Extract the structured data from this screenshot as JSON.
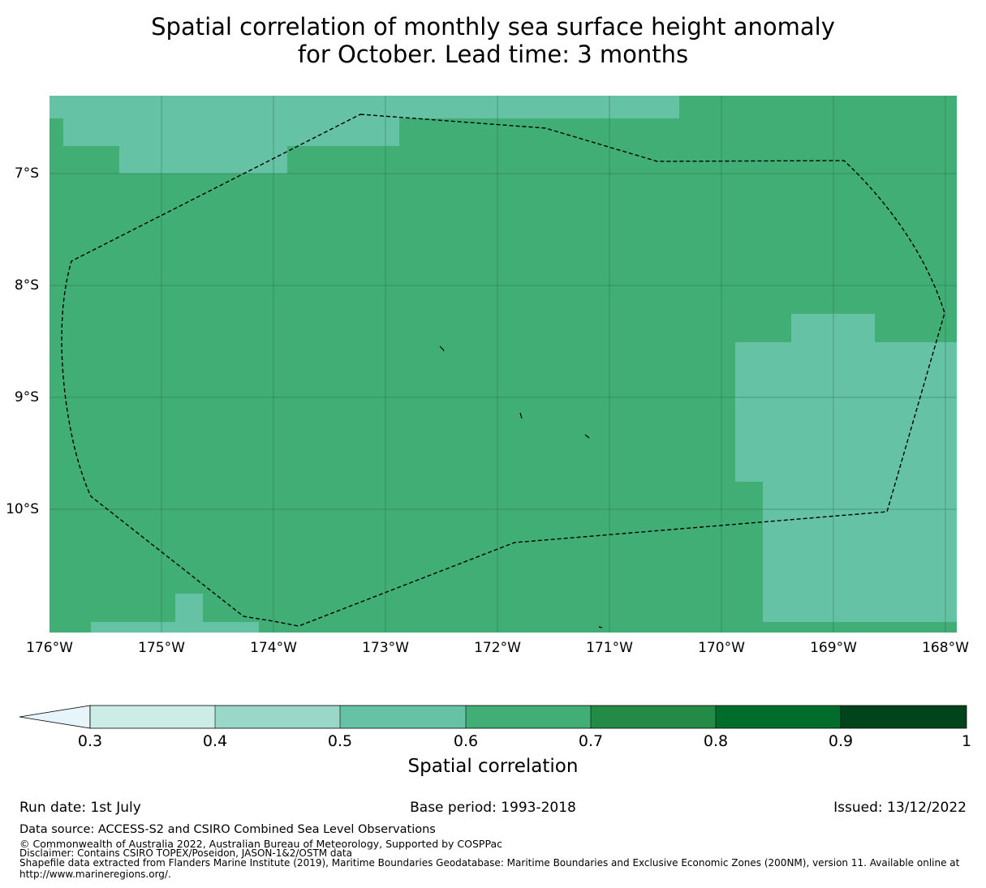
{
  "title": {
    "line1": "Spatial correlation of monthly sea surface height anomaly",
    "line2": "for October. Lead time: 3 months"
  },
  "map": {
    "lon_range": [
      -176,
      -167.9
    ],
    "lat_range": [
      -11.1,
      -6.3
    ],
    "y_ticks": [
      "7°S",
      "8°S",
      "9°S",
      "10°S"
    ],
    "x_ticks": [
      "176°W",
      "175°W",
      "174°W",
      "173°W",
      "172°W",
      "171°W",
      "170°W",
      "169°W",
      "168°W"
    ],
    "background_value_class": "0.6-0.7",
    "patch_value_class": "0.5-0.6",
    "eez_boundary": "dashed black line"
  },
  "colorbar": {
    "title": "Spatial correlation",
    "ticks": [
      "0.3",
      "0.4",
      "0.5",
      "0.6",
      "0.7",
      "0.8",
      "0.9",
      "1"
    ],
    "extend": "min",
    "colors": [
      "#e5f5f9",
      "#ccece6",
      "#99d8c9",
      "#66c2a4",
      "#41ae76",
      "#238b45",
      "#006d2c",
      "#00441b"
    ]
  },
  "footer": {
    "run_date": "Run date: 1st July",
    "base_period": "Base period: 1993-2018",
    "issued": "Issued: 13/12/2022",
    "data_source": "Data source: ACCESS-S2 and CSIRO Combined Sea Level Observations",
    "copyright": "© Commonwealth of Australia 2022, Australian Bureau of Meteorology, Supported by COSPPac",
    "disclaimer": "Disclaimer: Contains CSIRO TOPEX/Poseidon, JASON-1&2/OSTM data",
    "shapefile_line1": "Shapefile data extracted from Flanders Marine Institute (2019), Maritime Boundaries Geodatabase: Maritime Boundaries and Exclusive Economic Zones (200NM), version 11. Available online at",
    "shapefile_line2": "http://www.marineregions.org/."
  }
}
